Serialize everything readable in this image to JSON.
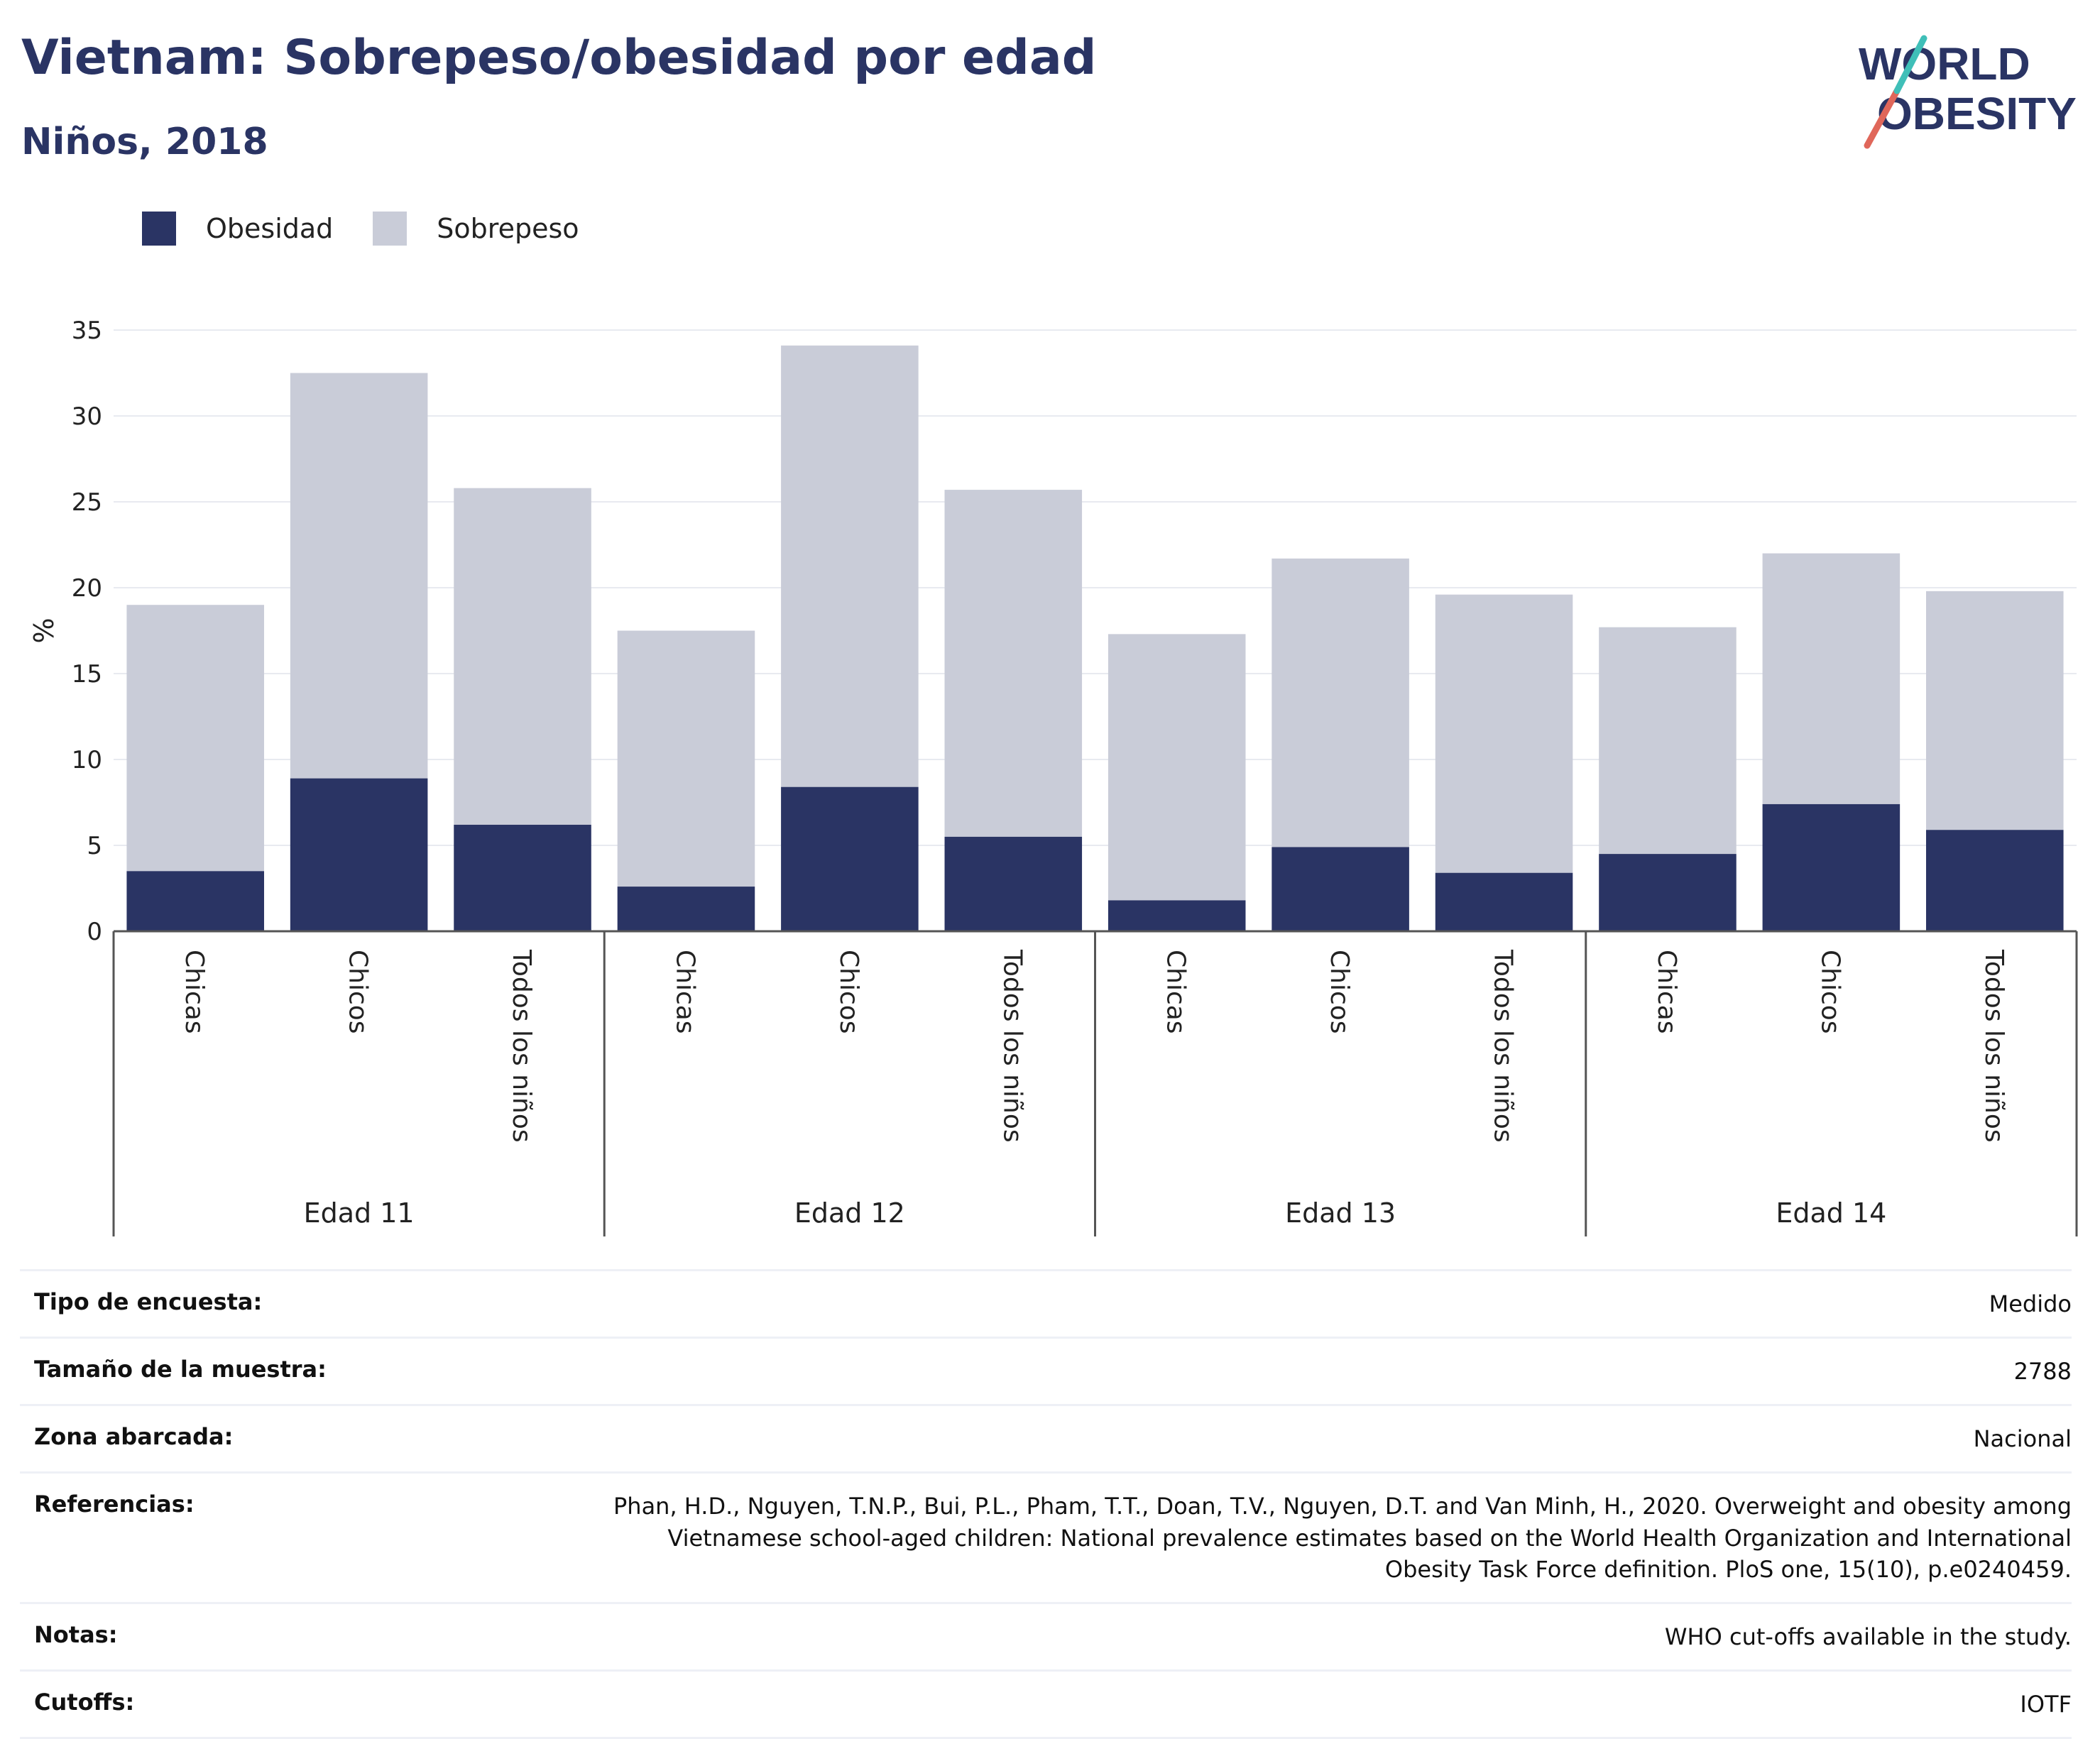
{
  "header": {
    "title": "Vietnam: Sobrepeso/obesidad por edad",
    "subtitle": "Niños, 2018"
  },
  "logo": {
    "line1": "WORLD",
    "line2": "OBESITY"
  },
  "legend": [
    {
      "label": "Obesidad",
      "color": "#2a3464"
    },
    {
      "label": "Sobrepeso",
      "color": "#c9ccd8"
    }
  ],
  "chart_data": {
    "type": "bar",
    "stacked": true,
    "ylabel": "%",
    "ylim": [
      0,
      35
    ],
    "yticks": [
      0,
      5,
      10,
      15,
      20,
      25,
      30,
      35
    ],
    "grid": true,
    "legend_position": "top-left",
    "groups": [
      {
        "label": "Edad 11",
        "categories": [
          "Chicas",
          "Chicos",
          "Todos los niños"
        ],
        "obesidad": [
          3.5,
          8.9,
          6.2
        ],
        "total": [
          19.0,
          32.5,
          25.8
        ]
      },
      {
        "label": "Edad 12",
        "categories": [
          "Chicas",
          "Chicos",
          "Todos los niños"
        ],
        "obesidad": [
          2.6,
          8.4,
          5.5
        ],
        "total": [
          17.5,
          34.1,
          25.7
        ]
      },
      {
        "label": "Edad 13",
        "categories": [
          "Chicas",
          "Chicos",
          "Todos los niños"
        ],
        "obesidad": [
          1.8,
          4.9,
          3.4
        ],
        "total": [
          17.3,
          21.7,
          19.6
        ]
      },
      {
        "label": "Edad 14",
        "categories": [
          "Chicas",
          "Chicos",
          "Todos los niños"
        ],
        "obesidad": [
          4.5,
          7.4,
          5.9
        ],
        "total": [
          17.7,
          22.0,
          19.8
        ]
      }
    ],
    "colors": {
      "obesidad": "#2a3464",
      "sobrepeso": "#c9ccd8",
      "grid": "#e8eaf0",
      "axis": "#555555"
    }
  },
  "info": [
    {
      "label": "Tipo de encuesta:",
      "value": "Medido"
    },
    {
      "label": "Tamaño de la muestra:",
      "value": "2788"
    },
    {
      "label": "Zona abarcada:",
      "value": "Nacional"
    },
    {
      "label": "Referencias:",
      "value": "Phan, H.D., Nguyen, T.N.P., Bui, P.L., Pham, T.T., Doan, T.V., Nguyen, D.T. and Van Minh, H., 2020. Overweight and obesity among Vietnamese school-aged children: National prevalence estimates based on the World Health Organization and International Obesity Task Force definition. PloS one, 15(10), p.e0240459."
    },
    {
      "label": "Notas:",
      "value": "WHO cut-offs available in the study."
    },
    {
      "label": "Cutoffs:",
      "value": "IOTF"
    }
  ]
}
